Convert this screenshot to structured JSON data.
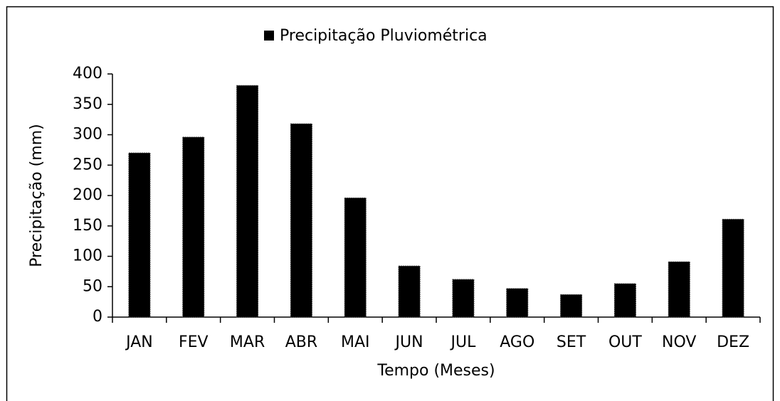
{
  "chart_data": {
    "type": "bar",
    "x_label": "Tempo (Meses)",
    "y_label": "Precipitação (mm)",
    "categories": [
      "JAN",
      "FEV",
      "MAR",
      "ABR",
      "MAI",
      "JUN",
      "JUL",
      "AGO",
      "SET",
      "OUT",
      "NOV",
      "DEZ"
    ],
    "series": [
      {
        "name": "Precipitação Pluviométrica",
        "color": "#000000",
        "values": [
          270,
          296,
          381,
          318,
          196,
          84,
          62,
          47,
          37,
          55,
          91,
          161
        ]
      }
    ],
    "ylim": [
      0,
      400
    ],
    "yticks": [
      0,
      50,
      100,
      150,
      200,
      250,
      300,
      350,
      400
    ],
    "grid": false,
    "legend": "top"
  }
}
